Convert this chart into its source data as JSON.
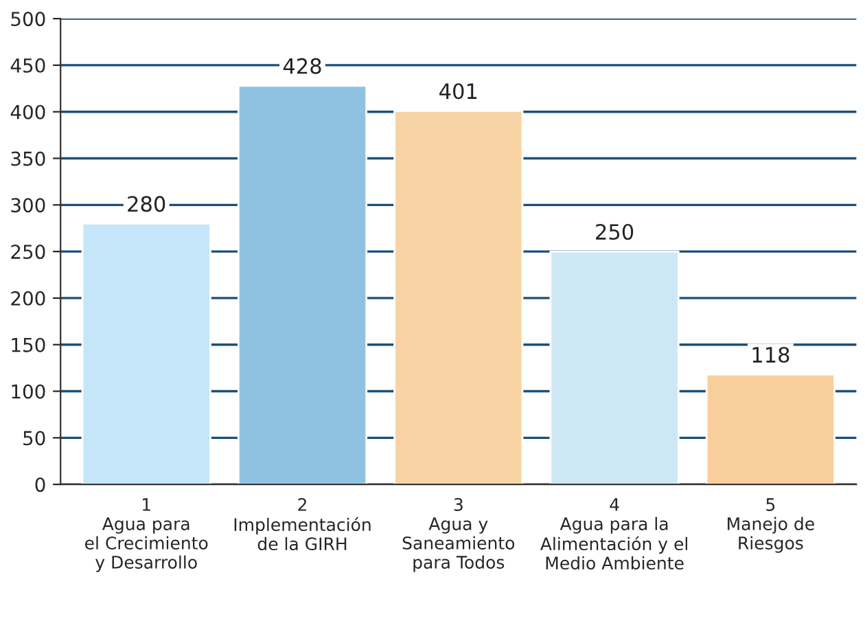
{
  "chart_data": {
    "type": "bar",
    "categories": [
      "1\nAgua para\nel Crecimiento\ny Desarrollo",
      "2\nImplementación\nde la GIRH",
      "3\nAgua y\nSaneamiento\npara Todos",
      "4\nAgua para la\nAlimentación y el\nMedio Ambiente",
      "5\nManejo de\nRiesgos"
    ],
    "values": [
      280,
      428,
      401,
      250,
      118
    ],
    "colors": [
      "#c4e6f8",
      "#8fc2e0",
      "#f8d4a4",
      "#cde8f4",
      "#f8cf9c"
    ],
    "ylim": [
      0,
      500
    ],
    "yticks": [
      0,
      50,
      100,
      150,
      200,
      250,
      300,
      350,
      400,
      450,
      500
    ],
    "grid": "y",
    "data_labels": true
  }
}
